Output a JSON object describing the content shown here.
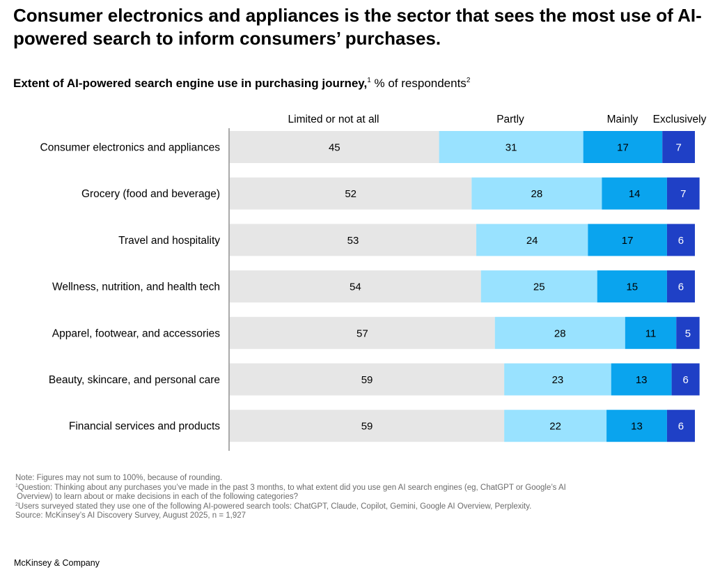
{
  "title": "Consumer electronics and appliances is the sector that sees the most use of AI-powered search to inform consumers’ purchases.",
  "subtitle": {
    "bold": "Extent of AI-powered search engine use in purchasing journey,",
    "bold_sup": "1",
    "rest": " % of respondents",
    "rest_sup": "2"
  },
  "chart_data": {
    "type": "bar",
    "orientation": "horizontal",
    "stacked": true,
    "categories": [
      "Consumer electronics and appliances",
      "Grocery (food and beverage)",
      "Travel and hospitality",
      "Wellness, nutrition, and health tech",
      "Apparel, footwear, and accessories",
      "Beauty, skincare, and personal care",
      "Financial services and products"
    ],
    "series": [
      {
        "name": "Limited or not at all",
        "color": "#e6e6e6",
        "values": [
          45,
          52,
          53,
          54,
          57,
          59,
          59
        ]
      },
      {
        "name": "Partly",
        "color": "#99e2ff",
        "values": [
          31,
          28,
          24,
          25,
          28,
          23,
          22
        ]
      },
      {
        "name": "Mainly",
        "color": "#0aa4ee",
        "values": [
          17,
          14,
          17,
          15,
          11,
          13,
          13
        ]
      },
      {
        "name": "Exclusively",
        "color": "#1f40c6",
        "values": [
          7,
          7,
          6,
          6,
          5,
          6,
          6
        ]
      }
    ],
    "xlim": [
      0,
      100
    ],
    "legend": "top"
  },
  "notes": {
    "note": "Note: Figures may not sum to 100%, because of rounding.",
    "fn1_mark": "1",
    "fn1_line1": "Question: Thinking about any purchases you’ve made in the past 3 months, to what extent did you use gen AI search engines (eg, ChatGPT or Google’s AI",
    "fn1_line2": "Overview) to learn about or make decisions in each of the following categories?",
    "fn2_mark": "2",
    "fn2": "Users surveyed stated they use one of the following AI-powered search tools: ChatGPT, Claude, Copilot, Gemini, Google AI Overview, Perplexity.",
    "source": "Source: McKinsey’s AI Discovery Survey, August 2025, n = 1,927"
  },
  "brand": "McKinsey & Company"
}
